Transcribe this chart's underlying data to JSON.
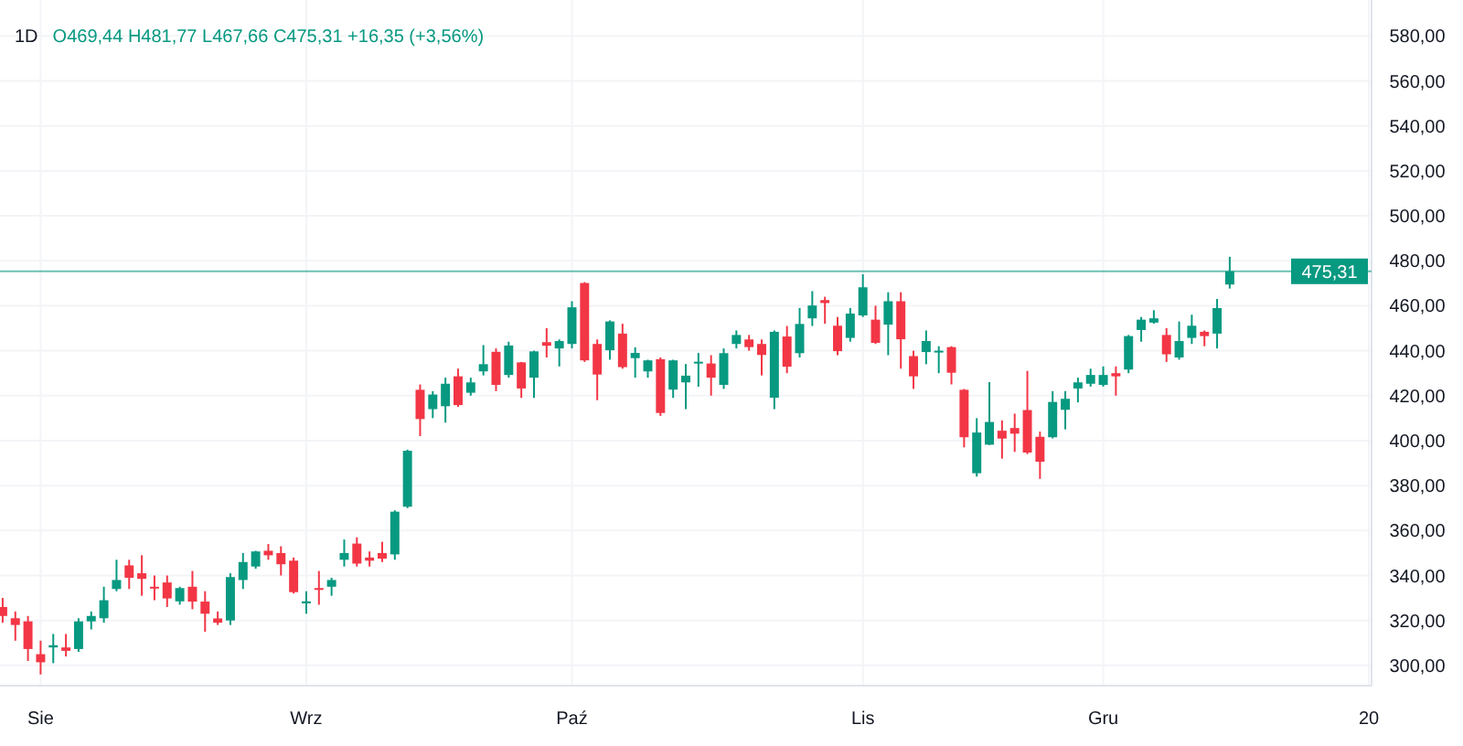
{
  "chart_data": {
    "type": "candlestick",
    "title": "1D",
    "subtitle": "O469,44 H481,77 L467,66 C475,31 +16,35 (+3,56%)",
    "categories": [
      null,
      null,
      null,
      "Sie",
      null,
      null,
      null,
      null,
      null,
      null,
      null,
      null,
      null,
      null,
      null,
      null,
      null,
      null,
      null,
      null,
      null,
      null,
      null,
      null,
      "Wrz",
      null,
      null,
      null,
      null,
      null,
      null,
      null,
      null,
      null,
      null,
      null,
      null,
      null,
      null,
      null,
      null,
      null,
      null,
      null,
      null,
      "Paź",
      null,
      null,
      null,
      null,
      null,
      null,
      null,
      null,
      null,
      null,
      null,
      null,
      null,
      null,
      null,
      null,
      null,
      null,
      null,
      null,
      null,
      null,
      "Lis",
      null,
      null,
      null,
      null,
      null,
      null,
      null,
      null,
      null,
      null,
      null,
      null,
      null,
      null,
      null,
      null,
      null,
      null,
      "Gru",
      null,
      null,
      null,
      null,
      null,
      null,
      null,
      null,
      null,
      null,
      null,
      null,
      null,
      null,
      null,
      null,
      null,
      null,
      null,
      null,
      "20"
    ],
    "ohlc": [
      [
        326,
        330,
        319,
        322
      ],
      [
        321,
        324,
        311,
        318
      ],
      [
        319.6,
        322,
        302,
        307.3
      ],
      [
        305,
        311,
        296,
        301.4
      ],
      [
        308,
        314,
        301,
        309
      ],
      [
        308,
        314,
        304,
        306.5
      ],
      [
        307.3,
        321,
        306,
        319.6
      ],
      [
        319.6,
        324,
        316,
        322
      ],
      [
        321,
        335,
        319,
        329
      ],
      [
        334,
        347,
        333,
        338
      ],
      [
        344.5,
        347,
        334,
        339
      ],
      [
        341,
        349,
        331,
        338.5
      ],
      [
        335,
        340,
        329,
        334.3
      ],
      [
        336.9,
        340,
        326,
        329.8
      ],
      [
        328.5,
        335,
        327,
        334.4
      ],
      [
        335,
        342,
        325,
        328.4
      ],
      [
        328.4,
        333,
        315,
        323
      ],
      [
        320.9,
        324,
        318,
        319
      ],
      [
        320,
        341,
        318,
        339.3
      ],
      [
        338,
        350,
        334,
        346
      ],
      [
        344,
        351,
        343,
        350.7
      ],
      [
        351,
        354,
        347,
        349
      ],
      [
        350,
        353,
        340,
        345
      ],
      [
        346.6,
        348,
        332,
        332.6
      ],
      [
        327.6,
        333,
        323,
        328.5
      ],
      [
        334.4,
        342,
        327,
        333.6
      ],
      [
        335,
        339,
        331,
        338
      ],
      [
        347,
        356,
        344,
        350
      ],
      [
        354.2,
        357,
        344,
        345.3
      ],
      [
        348,
        350.7,
        344,
        346.6
      ],
      [
        350,
        355,
        346,
        347.5
      ],
      [
        349.4,
        369,
        347,
        368.4
      ],
      [
        370.6,
        396,
        370,
        395.5
      ],
      [
        422.6,
        425,
        402,
        409.6
      ],
      [
        414,
        422,
        410,
        420.5
      ],
      [
        415.3,
        428,
        408,
        425.3
      ],
      [
        428.6,
        432,
        415,
        415.8
      ],
      [
        421.3,
        428,
        420,
        425.9
      ],
      [
        430.8,
        442.5,
        429,
        434
      ],
      [
        439.5,
        441,
        422,
        424.8
      ],
      [
        429.2,
        444,
        428,
        442.3
      ],
      [
        434.8,
        435,
        419,
        423.2
      ],
      [
        428,
        440,
        419,
        439.7
      ],
      [
        443.8,
        450,
        437,
        442.2
      ],
      [
        441,
        445,
        433,
        444.3
      ],
      [
        443,
        462,
        441,
        459.3
      ],
      [
        470.1,
        470.5,
        435,
        435.7
      ],
      [
        443,
        445,
        418,
        429.4
      ],
      [
        440.2,
        453.5,
        436,
        453
      ],
      [
        447.6,
        452,
        432,
        432.7
      ],
      [
        436.7,
        441.5,
        428,
        439
      ],
      [
        430.8,
        436,
        428,
        435.7
      ],
      [
        436.2,
        437,
        411,
        412.3
      ],
      [
        422.7,
        436,
        419,
        435.7
      ],
      [
        425.9,
        434,
        414,
        428.9
      ],
      [
        434.5,
        439,
        424,
        435.1
      ],
      [
        434.3,
        438,
        420,
        428
      ],
      [
        424.8,
        441,
        423,
        438.9
      ],
      [
        443,
        449,
        441,
        447
      ],
      [
        445,
        447,
        440,
        441.6
      ],
      [
        443,
        445,
        429,
        438.1
      ],
      [
        419.1,
        449,
        414,
        448.4
      ],
      [
        446.3,
        451,
        430,
        432.9
      ],
      [
        438.9,
        459,
        437,
        451.9
      ],
      [
        454.4,
        466.5,
        451,
        460.1
      ],
      [
        462.5,
        464,
        452,
        461.2
      ],
      [
        451.1,
        455,
        438,
        439.8
      ],
      [
        445.7,
        459,
        444,
        456.5
      ],
      [
        455.7,
        474,
        455,
        468.2
      ],
      [
        453.8,
        460,
        443,
        443.5
      ],
      [
        451.6,
        466,
        438,
        462
      ],
      [
        462,
        466,
        432,
        445.1
      ],
      [
        437.6,
        440,
        423,
        428.6
      ],
      [
        439.4,
        449,
        434,
        444.3
      ],
      [
        439.4,
        442,
        430,
        440
      ],
      [
        441.6,
        442,
        425,
        430.2
      ],
      [
        422.6,
        423,
        397,
        401.5
      ],
      [
        385.5,
        410,
        384,
        403.6
      ],
      [
        398.2,
        426,
        398,
        408.3
      ],
      [
        404.4,
        409,
        392,
        400.9
      ],
      [
        405.6,
        412,
        395,
        403.1
      ],
      [
        413.6,
        431,
        394,
        394.7
      ],
      [
        401.7,
        404,
        383,
        390.6
      ],
      [
        401.5,
        422,
        401,
        417.2
      ],
      [
        413.7,
        422,
        405,
        418.6
      ],
      [
        423.2,
        428,
        417,
        425.9
      ],
      [
        425.3,
        432,
        424,
        429.2
      ],
      [
        424.8,
        433,
        424,
        429.2
      ],
      [
        430,
        433,
        420,
        428.6
      ],
      [
        431.6,
        447,
        430,
        446.5
      ],
      [
        449.2,
        455,
        444,
        453.8
      ],
      [
        452.5,
        458,
        452,
        454.4
      ],
      [
        447,
        450,
        435,
        438.4
      ],
      [
        437,
        453,
        436,
        444.3
      ],
      [
        445.7,
        456,
        443,
        451.1
      ],
      [
        448.4,
        449,
        442,
        446.5
      ],
      [
        447.6,
        463,
        441,
        458.96
      ],
      [
        469.44,
        481.77,
        467.66,
        475.31
      ],
      null,
      null,
      null,
      null,
      null,
      null,
      null,
      null,
      null,
      null,
      null
    ],
    "ylim": [
      291,
      596
    ],
    "yticks": [
      {
        "value": 300,
        "label": "300,00"
      },
      {
        "value": 320,
        "label": "320,00"
      },
      {
        "value": 340,
        "label": "340,00"
      },
      {
        "value": 360,
        "label": "360,00"
      },
      {
        "value": 380,
        "label": "380,00"
      },
      {
        "value": 400,
        "label": "400,00"
      },
      {
        "value": 420,
        "label": "420,00"
      },
      {
        "value": 440,
        "label": "440,00"
      },
      {
        "value": 460,
        "label": "460,00"
      },
      {
        "value": 480,
        "label": "480,00"
      },
      {
        "value": 500,
        "label": "500,00"
      },
      {
        "value": 520,
        "label": "520,00"
      },
      {
        "value": 540,
        "label": "540,00"
      },
      {
        "value": 560,
        "label": "560,00"
      },
      {
        "value": 580,
        "label": "580,00"
      }
    ],
    "ref_lines": [
      {
        "axis": "y",
        "value": 475.31,
        "label": "475,31",
        "color": "#089981"
      }
    ],
    "grid": true
  }
}
